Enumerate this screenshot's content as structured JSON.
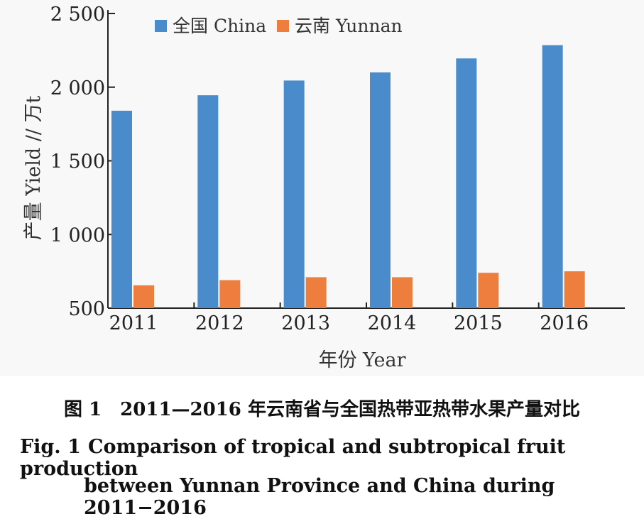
{
  "chart_data": {
    "type": "bar",
    "categories": [
      "2011",
      "2012",
      "2013",
      "2014",
      "2015",
      "2016"
    ],
    "series": [
      {
        "name": "全国 China",
        "color": "#4a8ccb",
        "values": [
          1840,
          1945,
          2045,
          2100,
          2195,
          2285
        ]
      },
      {
        "name": "云南 Yunnan",
        "color": "#ee7e3e",
        "values": [
          655,
          690,
          710,
          710,
          740,
          750
        ]
      }
    ],
    "xlabel": "年份 Year",
    "ylabel": "产量 Yield // 万t",
    "ylim": [
      500,
      2500
    ],
    "yticks": [
      500,
      1000,
      1500,
      2000,
      2500
    ],
    "ytick_labels": [
      "500",
      "1 000",
      "1 500",
      "2 000",
      "2 500"
    ],
    "legend_position": "top-left",
    "grid": false
  },
  "caption": {
    "cn": "图 1　2011—2016 年云南省与全国热带亚热带水果产量对比",
    "en_label": "Fig. 1",
    "en_line1": "Comparison of tropical and subtropical fruit production",
    "en_line2": "between Yunnan Province and China during 2011−2016"
  }
}
